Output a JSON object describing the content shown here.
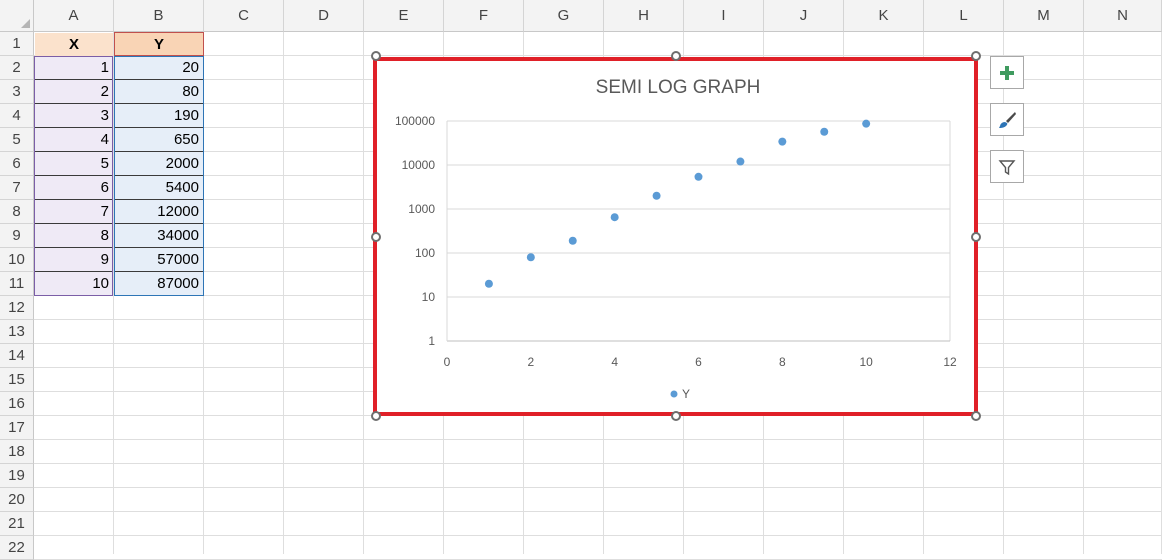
{
  "columns": [
    "A",
    "B",
    "C",
    "D",
    "E",
    "F",
    "G",
    "H",
    "I",
    "J",
    "K",
    "L",
    "M",
    "N"
  ],
  "rows": [
    "1",
    "2",
    "3",
    "4",
    "5",
    "6",
    "7",
    "8",
    "9",
    "10",
    "11",
    "12",
    "13",
    "14",
    "15",
    "16",
    "17",
    "18",
    "19",
    "20",
    "21",
    "22"
  ],
  "table": {
    "header_x": "X",
    "header_y": "Y",
    "x_values": [
      "1",
      "2",
      "3",
      "4",
      "5",
      "6",
      "7",
      "8",
      "9",
      "10"
    ],
    "y_values": [
      "20",
      "80",
      "190",
      "650",
      "2000",
      "5400",
      "12000",
      "34000",
      "57000",
      "87000"
    ]
  },
  "chart_data": {
    "type": "scatter",
    "title": "SEMI LOG GRAPH",
    "series": [
      {
        "name": "Y",
        "x": [
          1,
          2,
          3,
          4,
          5,
          6,
          7,
          8,
          9,
          10
        ],
        "y": [
          20,
          80,
          190,
          650,
          2000,
          5400,
          12000,
          34000,
          57000,
          87000
        ]
      }
    ],
    "x_range": [
      0,
      12
    ],
    "x_ticks": [
      "0",
      "2",
      "4",
      "6",
      "8",
      "10",
      "12"
    ],
    "y_scale": "log",
    "y_range": [
      1,
      100000
    ],
    "y_ticks": [
      "1",
      "10",
      "100",
      "1000",
      "10000",
      "100000"
    ],
    "grid": true,
    "legend": "bottom",
    "marker_color": "#5b9bd5"
  },
  "colors": {
    "chart_border": "#e02028",
    "x_header_fill": "#fbe2cc",
    "y_header_fill": "#f9d4b5"
  }
}
